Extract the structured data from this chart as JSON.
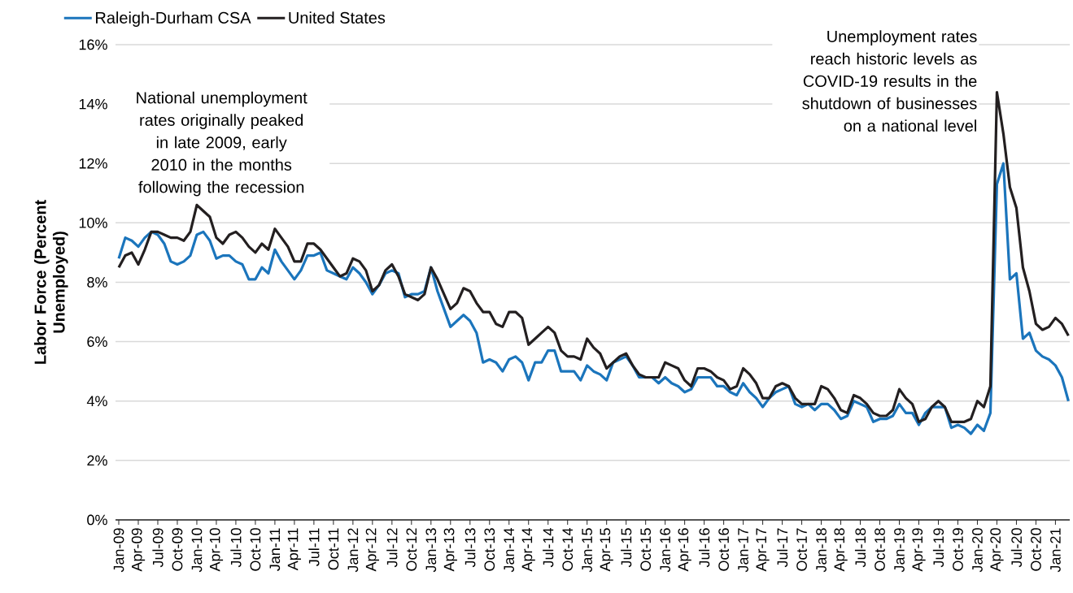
{
  "chart_data": {
    "type": "line",
    "ylabel": "Labor Force (Percent Unemployed)",
    "categories": [
      "Jan-09",
      null,
      null,
      "Apr-09",
      null,
      null,
      "Jul-09",
      null,
      null,
      "Oct-09",
      null,
      null,
      "Jan-10",
      null,
      null,
      "Apr-10",
      null,
      null,
      "Jul-10",
      null,
      null,
      "Oct-10",
      null,
      null,
      "Jan-11",
      null,
      null,
      "Apr-11",
      null,
      null,
      "Jul-11",
      null,
      null,
      "Oct-11",
      null,
      null,
      "Jan-12",
      null,
      null,
      "Apr-12",
      null,
      null,
      "Jul-12",
      null,
      null,
      "Oct-12",
      null,
      null,
      "Jan-13",
      null,
      null,
      "Apr-13",
      null,
      null,
      "Jul-13",
      null,
      null,
      "Oct-13",
      null,
      null,
      "Jan-14",
      null,
      null,
      "Apr-14",
      null,
      null,
      "Jul-14",
      null,
      null,
      "Oct-14",
      null,
      null,
      "Jan-15",
      null,
      null,
      "Apr-15",
      null,
      null,
      "Jul-15",
      null,
      null,
      "Oct-15",
      null,
      null,
      "Jan-16",
      null,
      null,
      "Apr-16",
      null,
      null,
      "Jul-16",
      null,
      null,
      "Oct-16",
      null,
      null,
      "Jan-17",
      null,
      null,
      "Apr-17",
      null,
      null,
      "Jul-17",
      null,
      null,
      "Oct-17",
      null,
      null,
      "Jan-18",
      null,
      null,
      "Apr-18",
      null,
      null,
      "Jul-18",
      null,
      null,
      "Oct-18",
      null,
      null,
      "Jan-19",
      null,
      null,
      "Apr-19",
      null,
      null,
      "Jul-19",
      null,
      null,
      "Oct-19",
      null,
      null,
      "Jan-20",
      null,
      null,
      "Apr-20",
      null,
      null,
      "Jul-20",
      null,
      null,
      "Oct-20",
      null,
      null,
      "Jan-21",
      null,
      null
    ],
    "series": [
      {
        "name": "Raleigh-Durham CSA",
        "color": "#1b75bc",
        "values": [
          8.8,
          9.5,
          9.4,
          9.2,
          9.5,
          9.7,
          9.6,
          9.3,
          8.7,
          8.6,
          8.7,
          8.9,
          9.6,
          9.7,
          9.4,
          8.8,
          8.9,
          8.9,
          8.7,
          8.6,
          8.1,
          8.1,
          8.5,
          8.3,
          9.1,
          8.7,
          8.4,
          8.1,
          8.4,
          8.9,
          8.9,
          9.0,
          8.4,
          8.3,
          8.2,
          8.1,
          8.5,
          8.3,
          8.0,
          7.6,
          7.9,
          8.3,
          8.4,
          8.3,
          7.5,
          7.6,
          7.6,
          7.7,
          8.5,
          7.7,
          7.1,
          6.5,
          6.7,
          6.9,
          6.7,
          6.3,
          5.3,
          5.4,
          5.3,
          5.0,
          5.4,
          5.5,
          5.3,
          4.7,
          5.3,
          5.3,
          5.7,
          5.7,
          5.0,
          5.0,
          5.0,
          4.7,
          5.2,
          5.0,
          4.9,
          4.7,
          5.3,
          5.4,
          5.5,
          5.2,
          4.8,
          4.8,
          4.8,
          4.6,
          4.8,
          4.6,
          4.5,
          4.3,
          4.4,
          4.8,
          4.8,
          4.8,
          4.5,
          4.5,
          4.3,
          4.2,
          4.6,
          4.3,
          4.1,
          3.8,
          4.1,
          4.3,
          4.4,
          4.5,
          3.9,
          3.8,
          3.9,
          3.7,
          3.9,
          3.9,
          3.7,
          3.4,
          3.5,
          4.0,
          3.9,
          3.8,
          3.3,
          3.4,
          3.4,
          3.5,
          3.9,
          3.6,
          3.6,
          3.2,
          3.6,
          3.8,
          3.8,
          3.8,
          3.1,
          3.2,
          3.1,
          2.9,
          3.2,
          3.0,
          3.6,
          11.3,
          12.0,
          8.1,
          8.3,
          6.1,
          6.3,
          5.7,
          5.5,
          5.4,
          5.2,
          4.8,
          4.0
        ]
      },
      {
        "name": "United States",
        "color": "#231f20",
        "values": [
          8.5,
          8.9,
          9.0,
          8.6,
          9.1,
          9.7,
          9.7,
          9.6,
          9.5,
          9.5,
          9.4,
          9.7,
          10.6,
          10.4,
          10.2,
          9.5,
          9.3,
          9.6,
          9.7,
          9.5,
          9.2,
          9.0,
          9.3,
          9.1,
          9.8,
          9.5,
          9.2,
          8.7,
          8.7,
          9.3,
          9.3,
          9.1,
          8.8,
          8.5,
          8.2,
          8.3,
          8.8,
          8.7,
          8.4,
          7.7,
          7.9,
          8.4,
          8.6,
          8.2,
          7.6,
          7.5,
          7.4,
          7.6,
          8.5,
          8.1,
          7.6,
          7.1,
          7.3,
          7.8,
          7.7,
          7.3,
          7.0,
          7.0,
          6.6,
          6.5,
          7.0,
          7.0,
          6.8,
          5.9,
          6.1,
          6.3,
          6.5,
          6.3,
          5.7,
          5.5,
          5.5,
          5.4,
          6.1,
          5.8,
          5.6,
          5.1,
          5.3,
          5.5,
          5.6,
          5.2,
          4.9,
          4.8,
          4.8,
          4.8,
          5.3,
          5.2,
          5.1,
          4.7,
          4.5,
          5.1,
          5.1,
          5.0,
          4.8,
          4.7,
          4.4,
          4.5,
          5.1,
          4.9,
          4.6,
          4.1,
          4.1,
          4.5,
          4.6,
          4.5,
          4.1,
          3.9,
          3.9,
          3.9,
          4.5,
          4.4,
          4.1,
          3.7,
          3.6,
          4.2,
          4.1,
          3.9,
          3.6,
          3.5,
          3.5,
          3.7,
          4.4,
          4.1,
          3.9,
          3.3,
          3.4,
          3.8,
          4.0,
          3.8,
          3.3,
          3.3,
          3.3,
          3.4,
          4.0,
          3.8,
          4.5,
          14.4,
          13.0,
          11.2,
          10.5,
          8.5,
          7.7,
          6.6,
          6.4,
          6.5,
          6.8,
          6.6,
          6.2
        ]
      }
    ],
    "ylim": [
      0,
      16
    ],
    "yticks": [
      {
        "value": 0,
        "label": "0%"
      },
      {
        "value": 2,
        "label": "2%"
      },
      {
        "value": 4,
        "label": "4%"
      },
      {
        "value": 6,
        "label": "6%"
      },
      {
        "value": 8,
        "label": "8%"
      },
      {
        "value": 10,
        "label": "10%"
      },
      {
        "value": 12,
        "label": "12%"
      },
      {
        "value": 14,
        "label": "14%"
      },
      {
        "value": 16,
        "label": "16%"
      }
    ],
    "grid": "y",
    "legend": "top left",
    "annotations": [
      "National unemployment rates originally peaked in late 2009, early 2010 in the months following the recession",
      "Unemployment rates reach historic levels as COVID-19 results in the shutdown of businesses on a national level"
    ]
  }
}
